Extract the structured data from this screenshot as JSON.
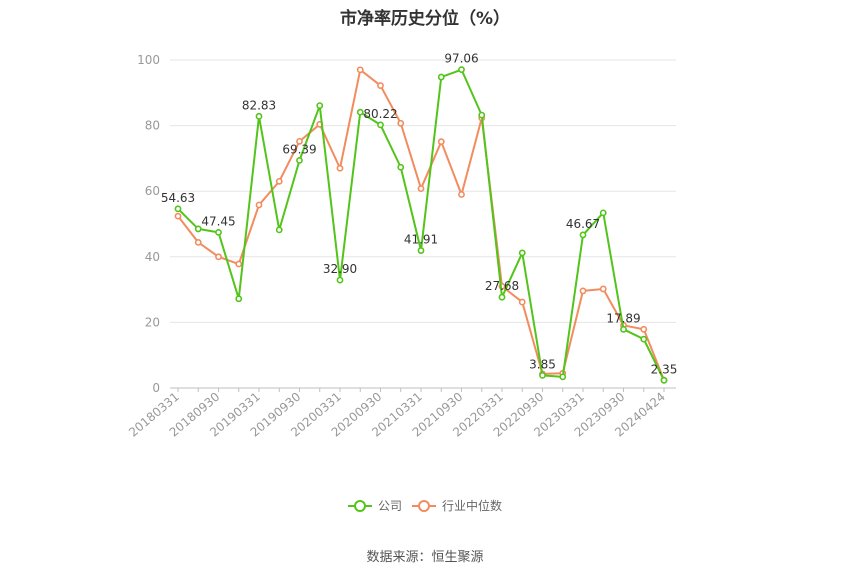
{
  "chart_data": {
    "type": "line",
    "title": "市净率历史分位（%）",
    "source": "数据来源：恒生聚源",
    "x_tick_labels": [
      "20180331",
      "20180930",
      "20190331",
      "20190930",
      "20200331",
      "20200930",
      "20210331",
      "20210930",
      "20220331",
      "20220930",
      "20230331",
      "20230930",
      "20240424"
    ],
    "x": [
      "20180331",
      "20180630",
      "20180930",
      "20181231",
      "20190331",
      "20190630",
      "20190930",
      "20191231",
      "20200331",
      "20200630",
      "20200930",
      "20201231",
      "20210331",
      "20210630",
      "20210930",
      "20211231",
      "20220331",
      "20220630",
      "20220930",
      "20221231",
      "20230331",
      "20230630",
      "20230930",
      "20231231",
      "20240424"
    ],
    "ylim": [
      0,
      100
    ],
    "y_ticks": [
      0,
      20,
      40,
      60,
      80,
      100
    ],
    "grid": true,
    "legend_position": "bottom",
    "series": [
      {
        "name": "公司",
        "color": "#52c41a",
        "values": [
          54.63,
          48.5,
          47.45,
          27.2,
          82.83,
          48.2,
          69.39,
          86.1,
          32.9,
          84.1,
          80.22,
          67.3,
          41.91,
          94.8,
          97.06,
          83.2,
          27.68,
          41.2,
          3.85,
          3.4,
          46.67,
          53.4,
          17.89,
          14.9,
          2.35
        ],
        "labels": {
          "0": "54.63",
          "2": "47.45",
          "4": "82.83",
          "6": "69.39",
          "8": "32.90",
          "10": "80.22",
          "12": "41.91",
          "14": "97.06",
          "16": "27.68",
          "18": "3.85",
          "20": "46.67",
          "22": "17.89",
          "24": "2.35"
        }
      },
      {
        "name": "行业中位数",
        "color": "#f28c5e",
        "values": [
          52.4,
          44.4,
          40.0,
          37.8,
          55.8,
          63.0,
          75.2,
          80.4,
          67.0,
          97.0,
          92.2,
          80.7,
          60.8,
          75.1,
          59.0,
          82.3,
          31.0,
          26.2,
          4.3,
          4.5,
          29.6,
          30.2,
          19.1,
          17.9,
          2.4
        ]
      }
    ]
  }
}
